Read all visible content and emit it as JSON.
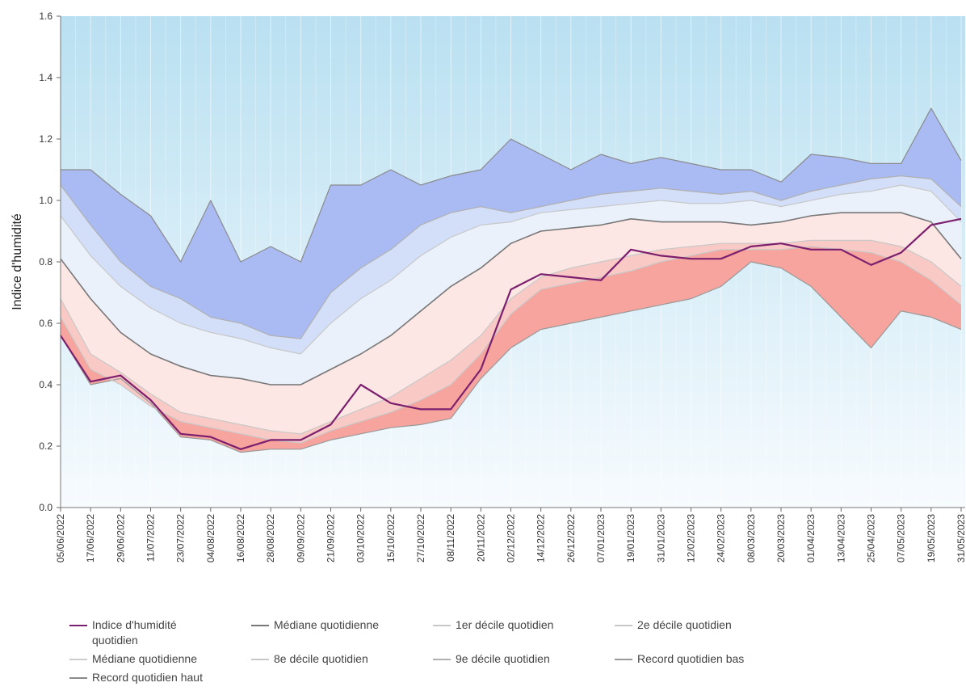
{
  "chart_data": {
    "type": "line",
    "y_label": "Indice d'humidité",
    "categories": [
      "05/06/2022",
      "17/06/2022",
      "29/06/2022",
      "11/07/2022",
      "23/07/2022",
      "04/08/2022",
      "16/08/2022",
      "28/08/2022",
      "09/09/2022",
      "21/09/2022",
      "03/10/2022",
      "15/10/2022",
      "27/10/2022",
      "08/11/2022",
      "20/11/2022",
      "02/12/2022",
      "14/12/2022",
      "26/12/2022",
      "07/01/2023",
      "19/01/2023",
      "31/01/2023",
      "12/02/2023",
      "24/02/2023",
      "08/03/2023",
      "20/03/2023",
      "01/04/2023",
      "13/04/2023",
      "25/04/2023",
      "07/05/2023",
      "19/05/2023",
      "31/05/2023"
    ],
    "ylim": [
      0,
      1.6
    ],
    "yticks": [
      {
        "value": 0,
        "label": "0.0"
      },
      0.2,
      0.4,
      0.6,
      0.8,
      {
        "value": 1,
        "label": "1.0"
      },
      1.2,
      1.4,
      1.6
    ],
    "grid": true,
    "band_colors": [
      "#f6a49d",
      "#f9cac5",
      "#fde7e4",
      "#eaf1fb",
      "#d3dff8",
      "#a9bbf2"
    ],
    "series": [
      {
        "name": "Indice d'humidité quotidien",
        "color": "#7b1f6e",
        "values": [
          0.56,
          0.41,
          0.43,
          0.35,
          0.24,
          0.23,
          0.19,
          0.22,
          0.22,
          0.27,
          0.4,
          0.34,
          0.32,
          0.32,
          0.45,
          0.71,
          0.76,
          0.75,
          0.74,
          0.84,
          0.82,
          0.81,
          0.81,
          0.85,
          0.86,
          0.84,
          0.84,
          0.79,
          0.83,
          0.92,
          0.94
        ]
      },
      {
        "name": "Médiane quotidienne",
        "color": "#777777",
        "values": [
          0.81,
          0.68,
          0.57,
          0.5,
          0.46,
          0.43,
          0.42,
          0.4,
          0.4,
          0.45,
          0.5,
          0.56,
          0.64,
          0.72,
          0.78,
          0.86,
          0.9,
          0.91,
          0.92,
          0.94,
          0.93,
          0.93,
          0.93,
          0.92,
          0.93,
          0.95,
          0.96,
          0.96,
          0.96,
          0.93,
          0.81
        ]
      },
      {
        "name": "1er décile quotidien",
        "color": "#c8c8c8",
        "values": [
          0.62,
          0.45,
          0.4,
          0.33,
          0.28,
          0.26,
          0.24,
          0.22,
          0.21,
          0.25,
          0.28,
          0.31,
          0.35,
          0.4,
          0.5,
          0.63,
          0.71,
          0.73,
          0.75,
          0.77,
          0.8,
          0.82,
          0.84,
          0.84,
          0.84,
          0.85,
          0.84,
          0.83,
          0.8,
          0.74,
          0.66
        ]
      },
      {
        "name": "2e décile quotidien",
        "color": "#c8c8c8",
        "values": [
          0.68,
          0.5,
          0.44,
          0.37,
          0.31,
          0.29,
          0.27,
          0.25,
          0.24,
          0.28,
          0.32,
          0.36,
          0.42,
          0.48,
          0.56,
          0.68,
          0.75,
          0.78,
          0.8,
          0.82,
          0.84,
          0.85,
          0.86,
          0.86,
          0.86,
          0.87,
          0.87,
          0.87,
          0.85,
          0.8,
          0.72
        ]
      },
      {
        "name": "Médiane quotidienne",
        "color": "#cccccc",
        "values": [
          0.81,
          0.68,
          0.57,
          0.5,
          0.46,
          0.43,
          0.42,
          0.4,
          0.4,
          0.45,
          0.5,
          0.56,
          0.64,
          0.72,
          0.78,
          0.86,
          0.9,
          0.91,
          0.92,
          0.94,
          0.93,
          0.93,
          0.93,
          0.92,
          0.93,
          0.95,
          0.96,
          0.96,
          0.96,
          0.93,
          0.81
        ]
      },
      {
        "name": "8e décile quotidien",
        "color": "#c8c8c8",
        "values": [
          0.95,
          0.82,
          0.72,
          0.65,
          0.6,
          0.57,
          0.55,
          0.52,
          0.5,
          0.6,
          0.68,
          0.74,
          0.82,
          0.88,
          0.92,
          0.93,
          0.96,
          0.97,
          0.98,
          0.99,
          1.0,
          0.99,
          0.99,
          1.0,
          0.98,
          1.0,
          1.02,
          1.03,
          1.05,
          1.03,
          0.93
        ]
      },
      {
        "name": "9e décile quotidien",
        "color": "#b0b0b0",
        "values": [
          1.05,
          0.92,
          0.8,
          0.72,
          0.68,
          0.62,
          0.6,
          0.56,
          0.55,
          0.7,
          0.78,
          0.84,
          0.92,
          0.96,
          0.98,
          0.96,
          0.98,
          1.0,
          1.02,
          1.03,
          1.04,
          1.03,
          1.02,
          1.03,
          1.0,
          1.03,
          1.05,
          1.07,
          1.08,
          1.07,
          0.98
        ]
      },
      {
        "name": "Record quotidien bas",
        "color": "#999999",
        "values": [
          0.56,
          0.4,
          0.42,
          0.34,
          0.23,
          0.22,
          0.18,
          0.19,
          0.19,
          0.22,
          0.24,
          0.26,
          0.27,
          0.29,
          0.42,
          0.52,
          0.58,
          0.6,
          0.62,
          0.64,
          0.66,
          0.68,
          0.72,
          0.8,
          0.78,
          0.72,
          0.62,
          0.52,
          0.64,
          0.62,
          0.58
        ]
      },
      {
        "name": "Record quotidien haut",
        "color": "#8a8a8a",
        "values": [
          1.1,
          1.1,
          1.02,
          0.95,
          0.8,
          1.0,
          0.8,
          0.85,
          0.8,
          1.05,
          1.05,
          1.1,
          1.05,
          1.08,
          1.1,
          1.2,
          1.15,
          1.1,
          1.15,
          1.12,
          1.14,
          1.12,
          1.1,
          1.1,
          1.06,
          1.15,
          1.14,
          1.12,
          1.12,
          1.3,
          1.13
        ]
      }
    ]
  }
}
